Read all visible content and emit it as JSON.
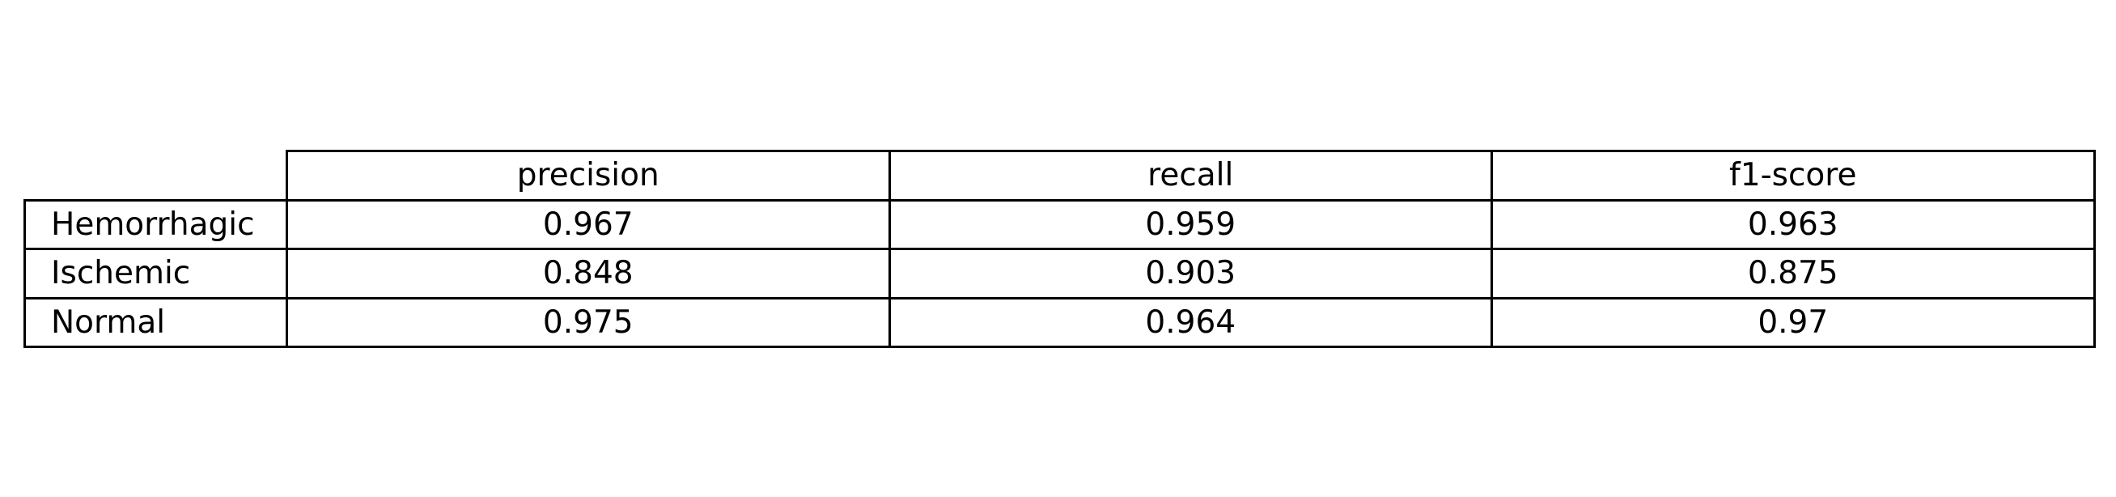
{
  "chart_data": {
    "type": "table",
    "columns": [
      "precision",
      "recall",
      "f1-score"
    ],
    "rows": [
      {
        "label": "Hemorrhagic",
        "values": [
          "0.967",
          "0.959",
          "0.963"
        ]
      },
      {
        "label": "Ischemic",
        "values": [
          "0.848",
          "0.903",
          "0.875"
        ]
      },
      {
        "label": "Normal",
        "values": [
          "0.975",
          "0.964",
          "0.97"
        ]
      }
    ],
    "grid": true,
    "border_color": "#000000"
  }
}
